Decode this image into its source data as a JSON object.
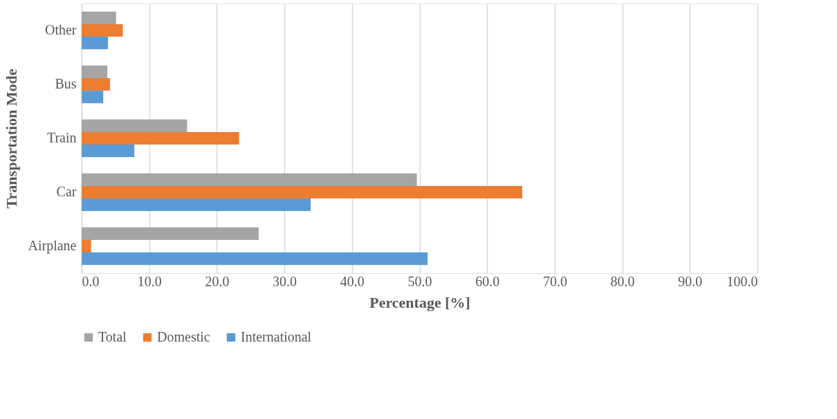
{
  "chart_data": {
    "type": "bar",
    "orientation": "horizontal",
    "xlabel": "Percentage [%]",
    "ylabel": "Transportation Mode",
    "categories": [
      "Other",
      "Bus",
      "Train",
      "Car",
      "Airplane"
    ],
    "series": [
      {
        "name": "Total",
        "color": "#a5a5a5",
        "values": [
          5.1,
          3.8,
          15.6,
          49.6,
          26.2
        ]
      },
      {
        "name": "Domestic",
        "color": "#ed7d31",
        "values": [
          6.1,
          4.2,
          23.3,
          65.2,
          1.4
        ]
      },
      {
        "name": "International",
        "color": "#5b9bd5",
        "values": [
          3.9,
          3.2,
          7.8,
          33.9,
          51.2
        ]
      }
    ],
    "xlim": [
      0,
      100
    ],
    "xticks": [
      {
        "value": 0,
        "label": "0.0"
      },
      {
        "value": 10,
        "label": "10.0"
      },
      {
        "value": 20,
        "label": "20.0"
      },
      {
        "value": 30,
        "label": "30.0"
      },
      {
        "value": 40,
        "label": "40.0"
      },
      {
        "value": 50,
        "label": "50.0"
      },
      {
        "value": 60,
        "label": "60.0"
      },
      {
        "value": 70,
        "label": "70.0"
      },
      {
        "value": 80,
        "label": "80.0"
      },
      {
        "value": 90,
        "label": "90.0"
      },
      {
        "value": 100,
        "label": "100.0"
      }
    ],
    "grid": "x",
    "legend": "bottom"
  }
}
